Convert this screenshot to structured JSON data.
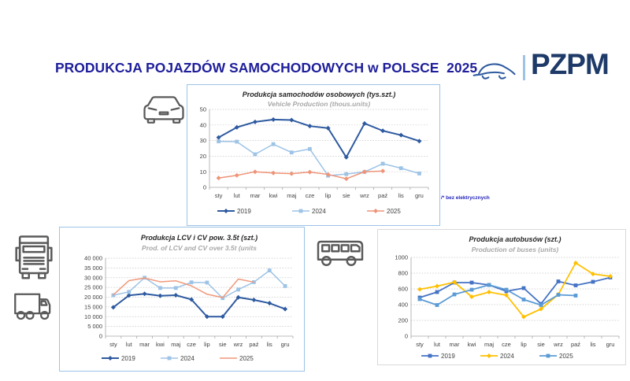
{
  "header": {
    "title": "PRODUKCJA POJAZDÓW SAMOCHODOWYCH w POLSCE  2025",
    "logo_text": "PZPM"
  },
  "footnote": "/* bez elektrycznych",
  "colors": {
    "title_navy": "#1f1f9b",
    "logo_navy": "#1e3a68",
    "panel_border_blue": "#9dc3e6",
    "panel_border_gray": "#d9d9d9",
    "icon_gray": "#595959"
  },
  "months": [
    "sty",
    "lut",
    "mar",
    "kwi",
    "maj",
    "cze",
    "lip",
    "sie",
    "wrz",
    "paź",
    "lis",
    "gru"
  ],
  "chart_data": [
    {
      "type": "line",
      "name": "passenger-cars",
      "title": "Produkcja samochodów osobowych (tys.szt.)",
      "subtitle": "Vehicle Production (thous.units)",
      "categories": [
        "sty",
        "lut",
        "mar",
        "kwi",
        "maj",
        "cze",
        "lip",
        "sie",
        "wrz",
        "paź",
        "lis",
        "gru"
      ],
      "ylim": [
        0,
        50
      ],
      "yticks": [
        {
          "v": 0,
          "label": "0"
        },
        {
          "v": 10,
          "label": "10"
        },
        {
          "v": 20,
          "label": "20"
        },
        {
          "v": 30,
          "label": "30"
        },
        {
          "v": 40,
          "label": "40"
        },
        {
          "v": 50,
          "label": "50"
        }
      ],
      "series": [
        {
          "name": "2019",
          "color": "#2e5aa0",
          "marker": "diamond",
          "lw": 2,
          "values": [
            32,
            38.5,
            42,
            43.5,
            43.2,
            39.3,
            38,
            19.3,
            41,
            36.3,
            33.5,
            29.7
          ]
        },
        {
          "name": "2024",
          "color": "#9dc3e6",
          "marker": "square",
          "lw": 1.5,
          "values": [
            29.5,
            29.3,
            21.2,
            27.7,
            22.4,
            24.6,
            7.5,
            8.5,
            9.9,
            15.2,
            12.3,
            8.9
          ]
        },
        {
          "name": "2025",
          "color": "#ef9478",
          "marker": "diamond",
          "lw": 1.5,
          "values": [
            6,
            7.7,
            10,
            9.2,
            8.8,
            9.8,
            8.3,
            5.5,
            10,
            10.5,
            null,
            null
          ]
        }
      ]
    },
    {
      "type": "line",
      "name": "lcv-cv",
      "title": "Produkcja LCV i CV pow. 3.5t (szt.)",
      "subtitle": "Prod. of LCV and CV over 3.5t (units",
      "categories": [
        "sty",
        "lut",
        "mar",
        "kwi",
        "maj",
        "cze",
        "lip",
        "sie",
        "wrz",
        "paź",
        "lis",
        "gru"
      ],
      "ylim": [
        0,
        40000
      ],
      "yticks": [
        {
          "v": 0,
          "label": "0"
        },
        {
          "v": 5000,
          "label": "5 000"
        },
        {
          "v": 10000,
          "label": "10 000"
        },
        {
          "v": 15000,
          "label": "15 000"
        },
        {
          "v": 20000,
          "label": "20 000"
        },
        {
          "v": 25000,
          "label": "25 000"
        },
        {
          "v": 30000,
          "label": "30 000"
        },
        {
          "v": 35000,
          "label": "35 000"
        },
        {
          "v": 40000,
          "label": "40 000"
        }
      ],
      "series": [
        {
          "name": "2019",
          "color": "#2e5aa0",
          "marker": "diamond",
          "lw": 2,
          "values": [
            14800,
            20900,
            21700,
            20700,
            21000,
            18800,
            10000,
            10000,
            19900,
            18600,
            16900,
            13900
          ]
        },
        {
          "name": "2024",
          "color": "#9dc3e6",
          "marker": "square",
          "lw": 1.5,
          "values": [
            21000,
            22700,
            30000,
            24700,
            24700,
            27600,
            27500,
            19500,
            23900,
            27700,
            33700,
            25700
          ]
        },
        {
          "name": "2025",
          "color": "#f0987a",
          "marker": "none",
          "lw": 1.5,
          "values": [
            21200,
            28500,
            29800,
            27900,
            28400,
            25800,
            21500,
            19800,
            29300,
            27700,
            null,
            null
          ]
        }
      ]
    },
    {
      "type": "line",
      "name": "buses",
      "title": "Produkcja autobusów (szt.)",
      "subtitle": "Production of buses (units)",
      "categories": [
        "sty",
        "lut",
        "mar",
        "kwi",
        "maj",
        "cze",
        "lip",
        "sie",
        "wrz",
        "paź",
        "lis",
        "gru"
      ],
      "ylim": [
        0,
        1000
      ],
      "yticks": [
        {
          "v": 0,
          "label": "0"
        },
        {
          "v": 200,
          "label": "200"
        },
        {
          "v": 400,
          "label": "400"
        },
        {
          "v": 600,
          "label": "600"
        },
        {
          "v": 800,
          "label": "800"
        },
        {
          "v": 1000,
          "label": "1000"
        }
      ],
      "series": [
        {
          "name": "2019",
          "color": "#4472c4",
          "marker": "square",
          "lw": 1.8,
          "values": [
            490,
            560,
            680,
            680,
            650,
            570,
            610,
            410,
            695,
            645,
            690,
            745
          ]
        },
        {
          "name": "2024",
          "color": "#ffc000",
          "marker": "diamond",
          "lw": 1.8,
          "values": [
            595,
            635,
            685,
            500,
            560,
            520,
            245,
            345,
            530,
            930,
            790,
            760
          ]
        },
        {
          "name": "2025",
          "color": "#5b9bd5",
          "marker": "square",
          "lw": 1.8,
          "values": [
            470,
            395,
            530,
            590,
            650,
            590,
            465,
            395,
            525,
            515,
            null,
            null
          ]
        }
      ]
    }
  ]
}
